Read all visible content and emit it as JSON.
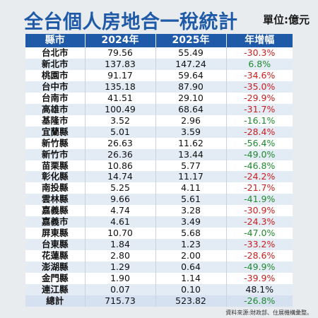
{
  "header": {
    "title": "全台個人房地合一稅統計",
    "unit": "單位:億元"
  },
  "table": {
    "columns": [
      "縣市",
      "2024年",
      "2025年",
      "年增幅"
    ],
    "rows": [
      {
        "name": "台北市",
        "y2024": "79.56",
        "y2025": "55.49",
        "change": "-30.3%",
        "trend": "neg"
      },
      {
        "name": "新北市",
        "y2024": "137.83",
        "y2025": "147.24",
        "change": "6.8%",
        "trend": "pos"
      },
      {
        "name": "桃園市",
        "y2024": "91.17",
        "y2025": "59.64",
        "change": "-34.6%",
        "trend": "neg"
      },
      {
        "name": "台中市",
        "y2024": "135.18",
        "y2025": "87.90",
        "change": "-35.0%",
        "trend": "neg"
      },
      {
        "name": "台南市",
        "y2024": "41.51",
        "y2025": "29.10",
        "change": "-29.9%",
        "trend": "neg"
      },
      {
        "name": "高雄市",
        "y2024": "100.49",
        "y2025": "68.64",
        "change": "-31.7%",
        "trend": "neg"
      },
      {
        "name": "基隆市",
        "y2024": "3.52",
        "y2025": "2.96",
        "change": "-16.1%",
        "trend": "pos"
      },
      {
        "name": "宜蘭縣",
        "y2024": "5.01",
        "y2025": "3.59",
        "change": "-28.4%",
        "trend": "neg"
      },
      {
        "name": "新竹縣",
        "y2024": "26.63",
        "y2025": "11.62",
        "change": "-56.4%",
        "trend": "pos"
      },
      {
        "name": "新竹市",
        "y2024": "26.36",
        "y2025": "13.44",
        "change": "-49.0%",
        "trend": "pos"
      },
      {
        "name": "苗栗縣",
        "y2024": "10.86",
        "y2025": "5.77",
        "change": "-46.8%",
        "trend": "pos"
      },
      {
        "name": "彰化縣",
        "y2024": "14.74",
        "y2025": "11.17",
        "change": "-24.2%",
        "trend": "neg"
      },
      {
        "name": "南投縣",
        "y2024": "5.25",
        "y2025": "4.11",
        "change": "-21.7%",
        "trend": "neg"
      },
      {
        "name": "雲林縣",
        "y2024": "9.66",
        "y2025": "5.61",
        "change": "-41.9%",
        "trend": "pos"
      },
      {
        "name": "嘉義縣",
        "y2024": "4.74",
        "y2025": "3.28",
        "change": "-30.9%",
        "trend": "neg"
      },
      {
        "name": "嘉義市",
        "y2024": "4.61",
        "y2025": "3.49",
        "change": "-24.3%",
        "trend": "neg"
      },
      {
        "name": "屏東縣",
        "y2024": "10.70",
        "y2025": "5.68",
        "change": "-47.0%",
        "trend": "pos"
      },
      {
        "name": "台東縣",
        "y2024": "1.84",
        "y2025": "1.23",
        "change": "-33.2%",
        "trend": "neg"
      },
      {
        "name": "花蓮縣",
        "y2024": "2.80",
        "y2025": "2.00",
        "change": "-28.6%",
        "trend": "neg"
      },
      {
        "name": "澎湖縣",
        "y2024": "1.29",
        "y2025": "0.64",
        "change": "-49.9%",
        "trend": "pos"
      },
      {
        "name": "金門縣",
        "y2024": "1.90",
        "y2025": "1.14",
        "change": "-39.9%",
        "trend": "neg"
      },
      {
        "name": "連江縣",
        "y2024": "0.07",
        "y2025": "0.10",
        "change": "48.1%",
        "trend": "plain"
      }
    ],
    "total": {
      "name": "總計",
      "y2024": "715.73",
      "y2025": "523.82",
      "change": "-26.8%",
      "trend": "pos"
    }
  },
  "source": "資料來源:財政部、住展機構彙整。",
  "colors": {
    "title": "#1e5aa8",
    "header_bg": "#1e5aa8",
    "negative": "#c81e1e",
    "positive": "#1e8a2e"
  }
}
